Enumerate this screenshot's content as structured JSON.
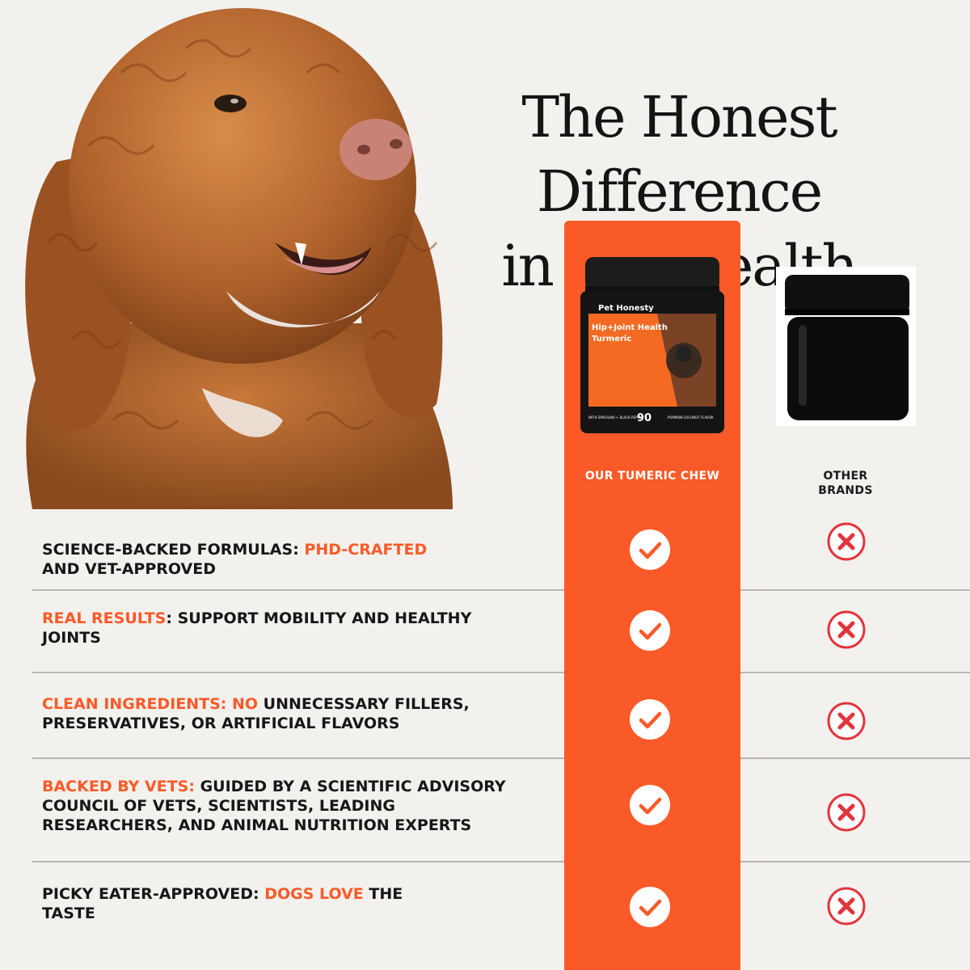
{
  "headline": {
    "line1": "The Honest Difference",
    "line2": "in Pet Health"
  },
  "columns": {
    "ours": "OUR TUMERIC CHEW",
    "others_line1": "OTHER",
    "others_line2": "BRANDS"
  },
  "product": {
    "brand": "Pet Honesty",
    "name_line1": "Hip+Joint Health",
    "name_line2": "Turmeric",
    "count": "90",
    "ingredients": "WITH SPIRULINA + BLACK PEPPER",
    "flavor": "PUMPKIN-COCONUT FLAVOR"
  },
  "rows": [
    {
      "segments": [
        "SCIENCE-BACKED FORMULAS: ",
        "PHD-CRAFTED",
        " AND VET-APPROVED"
      ]
    },
    {
      "segments": [
        "REAL RESULTS",
        ": SUPPORT MOBILITY AND HEALTHY JOINTS"
      ]
    },
    {
      "segments": [
        "CLEAN INGREDIENTS: NO",
        " UNNECESSARY FILLERS, PRESERVATIVES, OR ARTIFICIAL FLAVORS"
      ]
    },
    {
      "segments": [
        "BACKED BY VETS:",
        " GUIDED BY A SCIENTIFIC ADVISORY COUNCIL OF VETS, SCIENTISTS, LEADING RESEARCHERS, AND ANIMAL NUTRITION EXPERTS"
      ]
    },
    {
      "segments": [
        "PICKY EATER-APPROVED: ",
        "DOGS LOVE",
        " THE TASTE"
      ]
    }
  ],
  "colors": {
    "accent": "#fa5a28",
    "cross": "#e2343d",
    "background": "#f3f1ee"
  },
  "icons": {
    "check": "check-circle-icon",
    "cross": "x-circle-icon"
  }
}
